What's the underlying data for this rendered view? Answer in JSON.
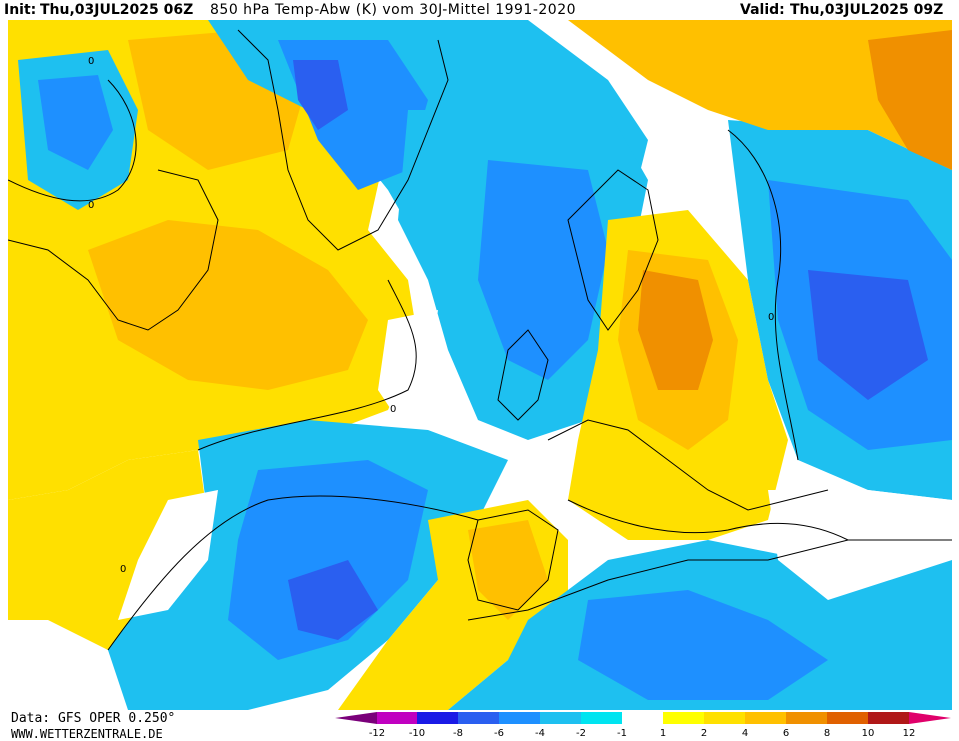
{
  "header": {
    "init_label": "Init:",
    "init_time": "Thu,03JUL2025 06Z",
    "title": "850 hPa Temp-Abw (K) vom 30J-Mittel 1991-2020",
    "valid_label": "Valid:",
    "valid_time": "Thu,03JUL2025 09Z"
  },
  "footer": {
    "data_source": "Data: GFS OPER 0.250°",
    "website": "WWW.WETTERZENTRALE.DE"
  },
  "colors": {
    "lt_m10": "#7a007a",
    "m12_m10": "#c000c0",
    "m10_m8": "#1a1ae6",
    "m8_m6": "#2a5ff0",
    "m6_m4": "#1e90ff",
    "m4_m2": "#1ec0f0",
    "m2_m1": "#00e4f0",
    "m1_1": "#ffffff",
    "p1_2": "#ffff00",
    "p2_4": "#ffe000",
    "p4_6": "#ffc000",
    "p6_8": "#f09000",
    "p8_10": "#e06000",
    "p10_12": "#b01818",
    "gt_12": "#e0006a"
  },
  "legend": {
    "labels": [
      "-12",
      "-10",
      "-8",
      "-6",
      "-4",
      "-2",
      "-1",
      "1",
      "2",
      "4",
      "6",
      "8",
      "10",
      "12"
    ]
  },
  "map_labels": [
    "0",
    "0",
    "0",
    "0",
    "0"
  ]
}
